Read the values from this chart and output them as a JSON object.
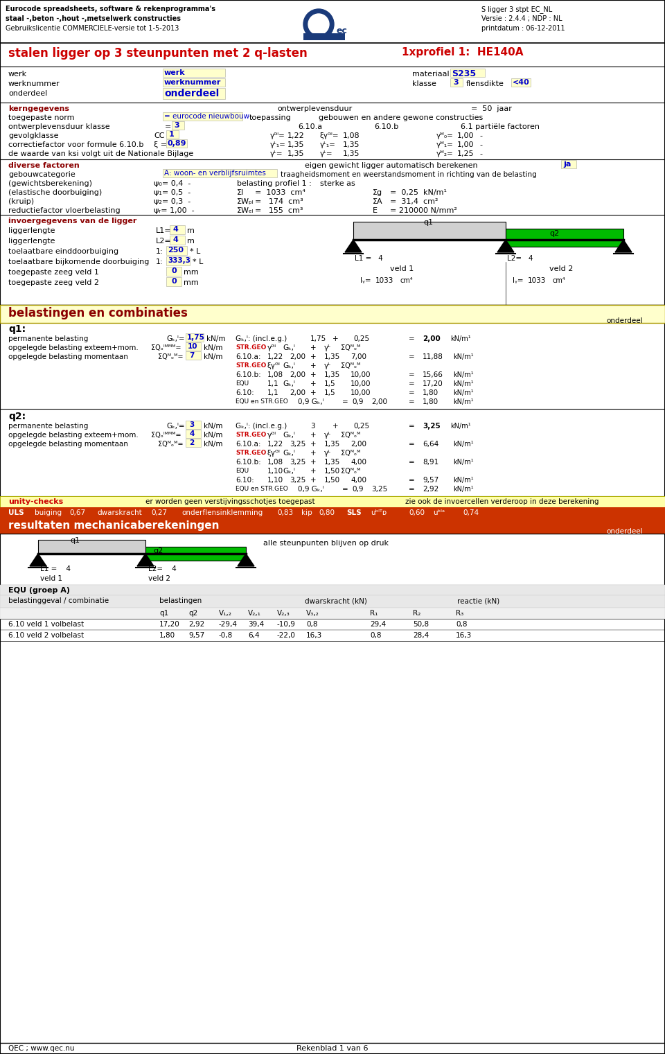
{
  "header_line1": "Eurocode spreadsheets, software & rekenprogramma's",
  "header_line2": "staal -,beton -,hout -,metselwerk constructies",
  "header_line3": "Gebruikslicentie COMMERCIELE-versie tot 1-5-2013",
  "header_right1": "S ligger 3 stpt EC_NL",
  "header_right2": "Versie : 2.4.4 ; NDP : NL",
  "header_right3": "printdatum : 06-12-2011",
  "title_left": "stalen ligger op 3 steunpunten met 2 q-lasten",
  "title_right": "1xprofiel 1:  HE140A",
  "bg_color": "#ffffff",
  "yellow_bg": "#ffffcc",
  "red_color": "#cc0000",
  "blue_color": "#0000cc",
  "dark_red": "#8b0000",
  "green_color": "#00bb00",
  "orange_red": "#cc3300",
  "gray_color": "#c0c0c0"
}
